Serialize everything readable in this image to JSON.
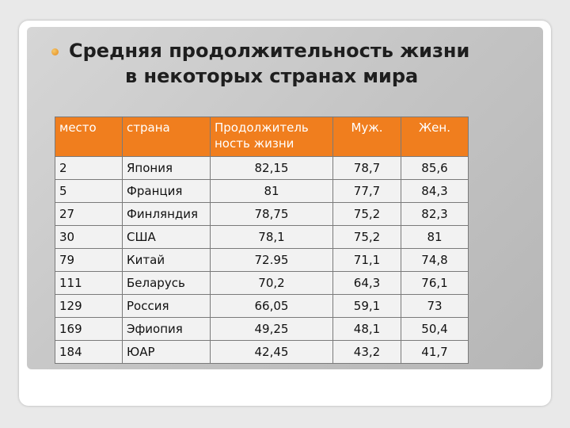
{
  "title": {
    "line1": "Средняя продолжительность жизни",
    "line2": "в некоторых странах мира"
  },
  "table": {
    "headers": [
      "место",
      "страна",
      "Продолжитель ность жизни",
      "Муж.",
      "Жен."
    ],
    "rows": [
      [
        "2",
        "Япония",
        "82,15",
        "78,7",
        "85,6"
      ],
      [
        "5",
        "Франция",
        "81",
        "77,7",
        "84,3"
      ],
      [
        "27",
        "Финляндия",
        "78,75",
        "75,2",
        "82,3"
      ],
      [
        "30",
        "США",
        "78,1",
        "75,2",
        "81"
      ],
      [
        "79",
        "Китай",
        "72.95",
        "71,1",
        "74,8"
      ],
      [
        "111",
        "Беларусь",
        "70,2",
        "64,3",
        "76,1"
      ],
      [
        "129",
        "Россия",
        "66,05",
        "59,1",
        "73"
      ],
      [
        "169",
        "Эфиопия",
        "49,25",
        "48,1",
        "50,4"
      ],
      [
        "184",
        "ЮАР",
        "42,45",
        "43,2",
        "41,7"
      ]
    ]
  },
  "colors": {
    "header_bg": "#f07e1e",
    "cell_bg": "#f2f2f2",
    "panel_bg": "#c6c6c6"
  }
}
